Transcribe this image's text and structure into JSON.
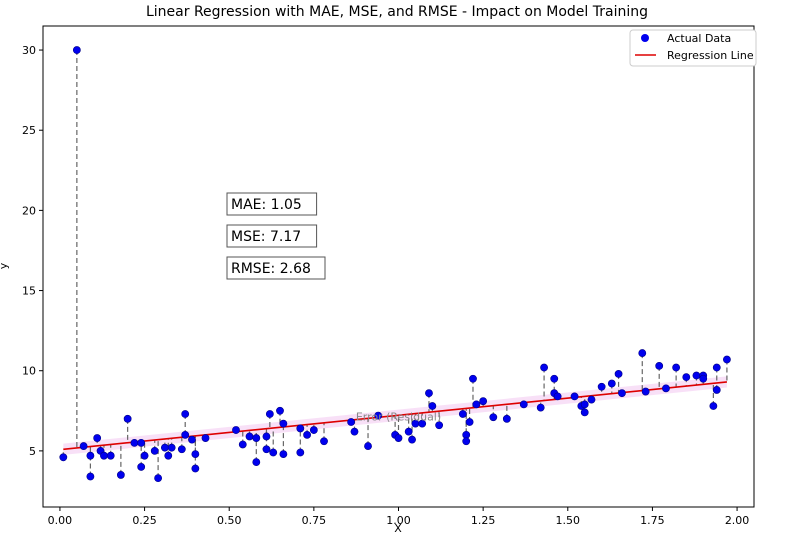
{
  "chart_data": {
    "type": "scatter",
    "title": "Linear Regression with MAE, MSE, and RMSE - Impact on Model Training",
    "xlabel": "X",
    "ylabel": "y",
    "xlim": [
      -0.05,
      2.05
    ],
    "ylim": [
      1.5,
      31.5
    ],
    "x_ticks": [
      "0.00",
      "0.25",
      "0.50",
      "0.75",
      "1.00",
      "1.25",
      "1.50",
      "1.75",
      "2.00"
    ],
    "y_ticks": [
      "5",
      "10",
      "15",
      "20",
      "25",
      "30"
    ],
    "grid": false,
    "legend_position": "top-right",
    "legend": [
      {
        "label": "Actual Data",
        "marker": "point",
        "color": "#0000ee"
      },
      {
        "label": "Regression Line",
        "marker": "line",
        "color": "#dd0000"
      }
    ],
    "regression_line": {
      "x": [
        0.01,
        1.97
      ],
      "y": [
        5.1,
        9.3
      ],
      "color": "#dd0000"
    },
    "residual_band_label": "Error (Residual)",
    "stats": [
      "MAE: 1.05",
      "MSE: 7.17",
      "RMSE: 2.68"
    ],
    "series": [
      {
        "name": "Actual Data",
        "points": [
          [
            0.01,
            4.6
          ],
          [
            0.05,
            30.0
          ],
          [
            0.07,
            5.3
          ],
          [
            0.09,
            4.7
          ],
          [
            0.09,
            3.4
          ],
          [
            0.11,
            5.8
          ],
          [
            0.12,
            5.0
          ],
          [
            0.13,
            4.7
          ],
          [
            0.15,
            4.7
          ],
          [
            0.18,
            3.5
          ],
          [
            0.2,
            7.0
          ],
          [
            0.22,
            5.5
          ],
          [
            0.24,
            5.5
          ],
          [
            0.24,
            4.0
          ],
          [
            0.25,
            4.7
          ],
          [
            0.28,
            5.0
          ],
          [
            0.29,
            3.3
          ],
          [
            0.31,
            5.2
          ],
          [
            0.32,
            4.7
          ],
          [
            0.33,
            5.2
          ],
          [
            0.36,
            5.1
          ],
          [
            0.37,
            6.0
          ],
          [
            0.37,
            7.3
          ],
          [
            0.39,
            5.7
          ],
          [
            0.4,
            4.8
          ],
          [
            0.4,
            3.9
          ],
          [
            0.43,
            5.8
          ],
          [
            0.52,
            6.3
          ],
          [
            0.54,
            5.4
          ],
          [
            0.56,
            5.9
          ],
          [
            0.58,
            4.3
          ],
          [
            0.58,
            5.8
          ],
          [
            0.61,
            5.9
          ],
          [
            0.61,
            5.1
          ],
          [
            0.62,
            7.3
          ],
          [
            0.63,
            4.9
          ],
          [
            0.65,
            7.5
          ],
          [
            0.66,
            6.7
          ],
          [
            0.66,
            4.8
          ],
          [
            0.71,
            6.4
          ],
          [
            0.71,
            4.9
          ],
          [
            0.73,
            6.0
          ],
          [
            0.75,
            6.3
          ],
          [
            0.78,
            5.6
          ],
          [
            0.86,
            6.8
          ],
          [
            0.87,
            6.2
          ],
          [
            0.91,
            5.3
          ],
          [
            0.94,
            7.2
          ],
          [
            0.99,
            6.0
          ],
          [
            1.0,
            5.8
          ],
          [
            1.03,
            6.2
          ],
          [
            1.04,
            5.7
          ],
          [
            1.05,
            6.7
          ],
          [
            1.07,
            6.7
          ],
          [
            1.09,
            8.6
          ],
          [
            1.1,
            7.8
          ],
          [
            1.12,
            6.6
          ],
          [
            1.19,
            7.3
          ],
          [
            1.2,
            6.0
          ],
          [
            1.2,
            5.6
          ],
          [
            1.21,
            6.8
          ],
          [
            1.22,
            9.5
          ],
          [
            1.23,
            7.9
          ],
          [
            1.25,
            8.1
          ],
          [
            1.28,
            7.1
          ],
          [
            1.32,
            7.0
          ],
          [
            1.37,
            7.9
          ],
          [
            1.42,
            7.7
          ],
          [
            1.43,
            10.2
          ],
          [
            1.46,
            8.6
          ],
          [
            1.46,
            9.5
          ],
          [
            1.47,
            8.4
          ],
          [
            1.52,
            8.4
          ],
          [
            1.54,
            7.8
          ],
          [
            1.55,
            7.4
          ],
          [
            1.55,
            7.9
          ],
          [
            1.57,
            8.2
          ],
          [
            1.6,
            9.0
          ],
          [
            1.63,
            9.2
          ],
          [
            1.65,
            9.8
          ],
          [
            1.66,
            8.6
          ],
          [
            1.72,
            11.1
          ],
          [
            1.73,
            8.7
          ],
          [
            1.77,
            10.3
          ],
          [
            1.79,
            8.9
          ],
          [
            1.82,
            10.2
          ],
          [
            1.85,
            9.6
          ],
          [
            1.88,
            9.7
          ],
          [
            1.9,
            9.7
          ],
          [
            1.9,
            9.5
          ],
          [
            1.93,
            7.8
          ],
          [
            1.94,
            8.8
          ],
          [
            1.94,
            10.2
          ],
          [
            1.97,
            10.7
          ]
        ]
      }
    ]
  }
}
